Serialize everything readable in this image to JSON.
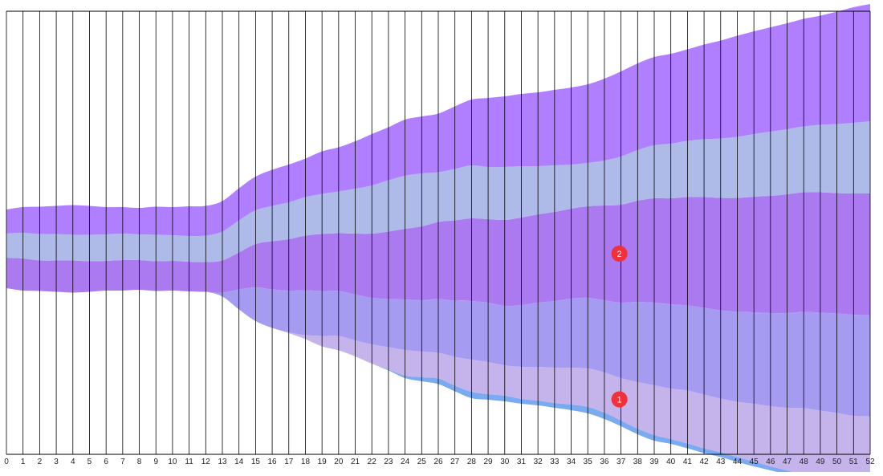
{
  "chart_data": {
    "type": "area",
    "subtype": "streamgraph",
    "title": "",
    "xlabel": "",
    "ylabel": "",
    "x": [
      0,
      1,
      2,
      3,
      4,
      5,
      6,
      7,
      8,
      9,
      10,
      11,
      12,
      13,
      14,
      15,
      16,
      17,
      18,
      19,
      20,
      21,
      22,
      23,
      24,
      25,
      26,
      27,
      28,
      29,
      30,
      31,
      32,
      33,
      34,
      35,
      36,
      37,
      38,
      39,
      40,
      41,
      42,
      43,
      44,
      45,
      46,
      47,
      48,
      49,
      50,
      51,
      52
    ],
    "x_tick_labels": [
      "0",
      "1",
      "2",
      "3",
      "4",
      "5",
      "6",
      "7",
      "8",
      "9",
      "10",
      "11",
      "12",
      "13",
      "14",
      "15",
      "16",
      "17",
      "18",
      "19",
      "20",
      "21",
      "22",
      "23",
      "24",
      "25",
      "26",
      "27",
      "28",
      "29",
      "30",
      "31",
      "32",
      "33",
      "34",
      "35",
      "36",
      "37",
      "38",
      "39",
      "40",
      "41",
      "42",
      "43",
      "44",
      "45",
      "46",
      "47",
      "48",
      "49",
      "50",
      "51",
      "52"
    ],
    "grid": true,
    "legend": "none",
    "series": [
      {
        "color": "#7aaaf0",
        "values": [
          0,
          0,
          0,
          0,
          0,
          0,
          0,
          0,
          0,
          0,
          0,
          0,
          0,
          0,
          0,
          0,
          0,
          0,
          0,
          0,
          0,
          0,
          0,
          1,
          3,
          5,
          7,
          7,
          8,
          7,
          7,
          6,
          6,
          6,
          7,
          8,
          8,
          7,
          7,
          7,
          6,
          6,
          6,
          6,
          6,
          6,
          5,
          5,
          5,
          4,
          4,
          4,
          4
        ]
      },
      {
        "color": "#c5b3ec",
        "values": [
          0,
          0,
          0,
          0,
          0,
          0,
          0,
          0,
          0,
          0,
          0,
          0,
          0,
          0,
          0,
          0,
          0,
          1,
          5,
          13,
          18,
          20,
          24,
          28,
          32,
          32,
          32,
          36,
          40,
          40,
          38,
          40,
          42,
          44,
          46,
          48,
          50,
          53,
          58,
          62,
          63,
          66,
          67,
          67,
          69,
          72,
          75,
          78,
          83,
          85,
          87,
          89,
          92
        ]
      },
      {
        "color": "#a59cf2",
        "values": [
          0,
          0,
          0,
          0,
          0,
          0,
          0,
          0,
          0,
          0,
          0,
          0,
          0,
          5,
          25,
          42,
          48,
          52,
          56,
          56,
          56,
          57,
          58,
          60,
          63,
          64,
          67,
          70,
          73,
          74,
          74,
          77,
          80,
          83,
          86,
          88,
          90,
          94,
          100,
          103,
          105,
          106,
          108,
          110,
          112,
          114,
          116,
          118,
          120,
          122,
          124,
          126,
          126
        ]
      },
      {
        "color": "#ac7af0",
        "values": [
          38,
          40,
          38,
          39,
          40,
          38,
          37,
          38,
          37,
          37,
          37,
          37,
          37,
          40,
          46,
          54,
          60,
          64,
          68,
          71,
          72,
          76,
          80,
          84,
          88,
          92,
          96,
          100,
          103,
          104,
          107,
          109,
          110,
          111,
          112,
          114,
          118,
          122,
          126,
          130,
          132,
          135,
          138,
          140,
          142,
          144,
          146,
          148,
          149,
          150,
          150,
          151,
          152
        ]
      },
      {
        "color": "#aebbe8",
        "values": [
          30,
          32,
          33,
          33,
          32,
          33,
          33,
          33,
          32,
          33,
          32,
          32,
          33,
          36,
          40,
          42,
          44,
          46,
          48,
          50,
          52,
          56,
          60,
          64,
          66,
          66,
          62,
          64,
          66,
          65,
          66,
          64,
          60,
          58,
          55,
          54,
          56,
          60,
          63,
          66,
          68,
          70,
          72,
          74,
          76,
          78,
          80,
          81,
          82,
          84,
          86,
          88,
          90
        ]
      },
      {
        "color": "#b07fff",
        "values": [
          30,
          32,
          34,
          35,
          37,
          36,
          34,
          33,
          33,
          35,
          35,
          37,
          37,
          38,
          40,
          42,
          45,
          47,
          48,
          53,
          55,
          59,
          64,
          66,
          70,
          71,
          73,
          78,
          82,
          86,
          88,
          90,
          92,
          94,
          96,
          98,
          102,
          106,
          108,
          110,
          112,
          114,
          118,
          122,
          126,
          128,
          130,
          132,
          134,
          136,
          140,
          144,
          146
        ]
      }
    ],
    "annotations": [
      {
        "label": "1",
        "x": 37,
        "series": 1,
        "color": "#f0303a"
      },
      {
        "label": "2",
        "x": 37,
        "series": 3,
        "color": "#f0303a"
      }
    ]
  }
}
